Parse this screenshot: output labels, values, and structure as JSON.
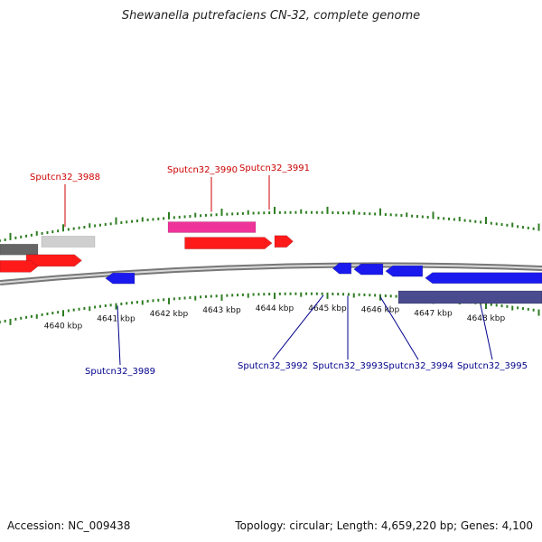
{
  "title": "Shewanella putrefaciens CN-32, complete genome",
  "footer": {
    "accession_label": "Accession: NC_009438",
    "topology_label": "Topology: circular; Length: 4,659,220 bp; Genes: 4,100"
  },
  "colors": {
    "gene_forward": "#ff1a1a",
    "gene_reverse": "#1a1aee",
    "label_forward": "#cc0000",
    "label_reverse": "#00008b",
    "tick": "#2e7d22",
    "backbone": "#8a8a8a",
    "cog_pink": "#ee3399",
    "cog_gray_dark": "#666666",
    "cog_gray_light": "#cfcfcf",
    "cog_navy": "#4a4a8e"
  },
  "scale": {
    "unit": "kbp",
    "labels": [
      "4640 kbp",
      "4641 kbp",
      "4642 kbp",
      "4643 kbp",
      "4644 kbp",
      "4645 kbp",
      "4646 kbp",
      "4647 kbp",
      "4648 kbp"
    ]
  },
  "forward_genes": [
    {
      "label": "Sputcn32_3988",
      "start": 4639.3,
      "end": 4640.35,
      "labeled": true
    },
    {
      "label": "Sputcn32_3990",
      "start": 4642.3,
      "end": 4643.95,
      "labeled": true
    },
    {
      "label": "Sputcn32_3991",
      "start": 4644.0,
      "end": 4644.35,
      "labeled": true
    }
  ],
  "reverse_genes": [
    {
      "label": "Sputcn32_3989",
      "start": 4640.8,
      "end": 4641.35,
      "labeled": true
    },
    {
      "label": "Sputcn32_3992",
      "start": 4645.1,
      "end": 4645.45,
      "labeled": true
    },
    {
      "label": "Sputcn32_3993",
      "start": 4645.5,
      "end": 4646.05,
      "labeled": true
    },
    {
      "label": "Sputcn32_3994",
      "start": 4646.1,
      "end": 4646.8,
      "labeled": true
    },
    {
      "label": "Sputcn32_3995",
      "start": 4646.85,
      "end": 4649.2,
      "labeled": true
    }
  ]
}
